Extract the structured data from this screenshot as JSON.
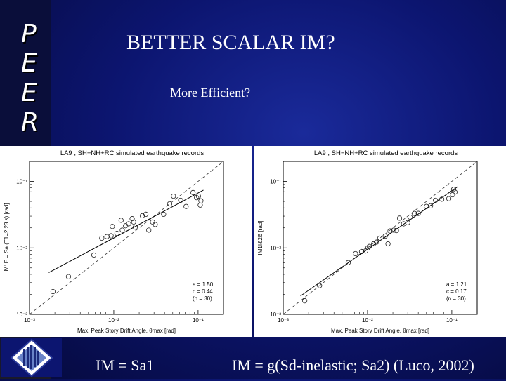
{
  "peer_letters": [
    "P",
    "E",
    "E",
    "R"
  ],
  "title": "BETTER SCALAR IM?",
  "subtitle": "More Efficient?",
  "captions": {
    "left": "IM = Sa1",
    "right": "IM = g(Sd-inelastic; Sa2) (Luco, 2002)"
  },
  "chart_data": [
    {
      "type": "scatter",
      "title": "LA9 , SH−NH+RC simulated earthquake records",
      "xlabel": "Max. Peak Story Drift Angle, θmax [rad]",
      "ylabel": "IM1E = Sa (T1=2.23 s) [rad]",
      "xscale": "log",
      "yscale": "log",
      "xlim": [
        0.001,
        0.2
      ],
      "ylim": [
        0.001,
        0.2
      ],
      "xticks": [
        {
          "v": 0.001,
          "label": "10⁻³"
        },
        {
          "v": 0.01,
          "label": "10⁻²"
        },
        {
          "v": 0.1,
          "label": "10⁻¹"
        }
      ],
      "yticks": [
        {
          "v": 0.001,
          "label": "10⁻³"
        },
        {
          "v": 0.01,
          "label": "10⁻²"
        },
        {
          "v": 0.1,
          "label": "10⁻¹"
        }
      ],
      "fit": {
        "a": 1.5,
        "c": 0.44
      },
      "stats": [
        "a = 1.50",
        "c = 0.44",
        "(n = 30)"
      ],
      "points": [
        [
          0.0019,
          0.0022
        ],
        [
          0.0029,
          0.0037
        ],
        [
          0.0058,
          0.0078
        ],
        [
          0.0072,
          0.014
        ],
        [
          0.0083,
          0.0148
        ],
        [
          0.0093,
          0.0152
        ],
        [
          0.0096,
          0.021
        ],
        [
          0.0109,
          0.0165
        ],
        [
          0.0122,
          0.026
        ],
        [
          0.0126,
          0.0185
        ],
        [
          0.0138,
          0.0215
        ],
        [
          0.015,
          0.023
        ],
        [
          0.0165,
          0.0275
        ],
        [
          0.0172,
          0.0245
        ],
        [
          0.018,
          0.0205
        ],
        [
          0.0218,
          0.0305
        ],
        [
          0.024,
          0.032
        ],
        [
          0.026,
          0.0185
        ],
        [
          0.0288,
          0.0245
        ],
        [
          0.031,
          0.0225
        ],
        [
          0.039,
          0.032
        ],
        [
          0.046,
          0.046
        ],
        [
          0.051,
          0.06
        ],
        [
          0.062,
          0.052
        ],
        [
          0.072,
          0.042
        ],
        [
          0.087,
          0.068
        ],
        [
          0.101,
          0.06
        ],
        [
          0.108,
          0.051
        ],
        [
          0.106,
          0.044
        ],
        [
          0.096,
          0.057
        ]
      ]
    },
    {
      "type": "scatter",
      "title": "LA9 , SH−NH+RC simulated earthquake records",
      "xlabel": "Max. Peak Story Drift Angle, θmax [rad]",
      "ylabel": "IM1I&2E [rad]",
      "xscale": "log",
      "yscale": "log",
      "xlim": [
        0.001,
        0.2
      ],
      "ylim": [
        0.001,
        0.2
      ],
      "xticks": [
        {
          "v": 0.001,
          "label": "10⁻³"
        },
        {
          "v": 0.01,
          "label": "10⁻²"
        },
        {
          "v": 0.1,
          "label": "10⁻¹"
        }
      ],
      "yticks": [
        {
          "v": 0.001,
          "label": "10⁻³"
        },
        {
          "v": 0.01,
          "label": "10⁻²"
        },
        {
          "v": 0.1,
          "label": "10⁻¹"
        }
      ],
      "fit": {
        "a": 1.21,
        "c": 0.17
      },
      "stats": [
        "a = 1.21",
        "c = 0.17",
        "(n = 30)"
      ],
      "points": [
        [
          0.0018,
          0.0016
        ],
        [
          0.0027,
          0.0027
        ],
        [
          0.0059,
          0.006
        ],
        [
          0.0072,
          0.0082
        ],
        [
          0.0085,
          0.0088
        ],
        [
          0.0095,
          0.009
        ],
        [
          0.0101,
          0.01
        ],
        [
          0.0105,
          0.0105
        ],
        [
          0.0118,
          0.0115
        ],
        [
          0.0128,
          0.0122
        ],
        [
          0.014,
          0.014
        ],
        [
          0.0162,
          0.015
        ],
        [
          0.0175,
          0.0115
        ],
        [
          0.0185,
          0.018
        ],
        [
          0.0205,
          0.0185
        ],
        [
          0.022,
          0.0182
        ],
        [
          0.024,
          0.028
        ],
        [
          0.0268,
          0.023
        ],
        [
          0.03,
          0.024
        ],
        [
          0.032,
          0.029
        ],
        [
          0.036,
          0.033
        ],
        [
          0.04,
          0.033
        ],
        [
          0.05,
          0.042
        ],
        [
          0.056,
          0.043
        ],
        [
          0.064,
          0.052
        ],
        [
          0.076,
          0.054
        ],
        [
          0.092,
          0.055
        ],
        [
          0.102,
          0.063
        ],
        [
          0.105,
          0.076
        ],
        [
          0.109,
          0.069
        ]
      ]
    }
  ]
}
